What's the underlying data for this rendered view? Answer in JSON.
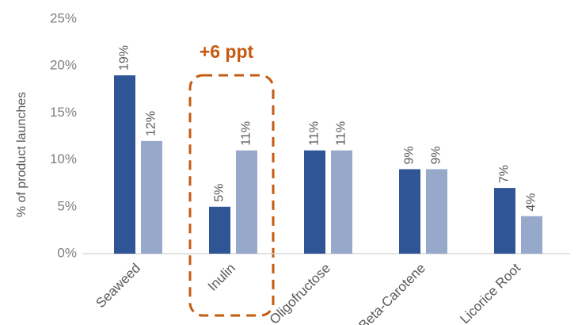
{
  "chart_data": {
    "type": "bar",
    "y_label": "% of product launches",
    "annotation": "+6 ppt",
    "categories": [
      "Seaweed",
      "Inulin",
      "Oligofructose",
      "Beta-Carotene",
      "Licorice Root"
    ],
    "series": [
      {
        "color": "#2f5597",
        "values": [
          19,
          5,
          11,
          9,
          7
        ],
        "value_labels": [
          "19%",
          "5%",
          "11%",
          "9%",
          "7%"
        ]
      },
      {
        "color": "#97a9cb",
        "values": [
          12,
          11,
          11,
          9,
          4
        ],
        "value_labels": [
          "12%",
          "11%",
          "11%",
          "9%",
          "4%"
        ]
      }
    ],
    "ylim": [
      0,
      25
    ],
    "yticks": [
      {
        "value": 0,
        "label": "0%"
      },
      {
        "value": 5,
        "label": "5%"
      },
      {
        "value": 10,
        "label": "10%"
      },
      {
        "value": 15,
        "label": "15%"
      },
      {
        "value": 20,
        "label": "20%"
      },
      {
        "value": 25,
        "label": "25%"
      }
    ],
    "annotation_color": "#c55a11"
  }
}
